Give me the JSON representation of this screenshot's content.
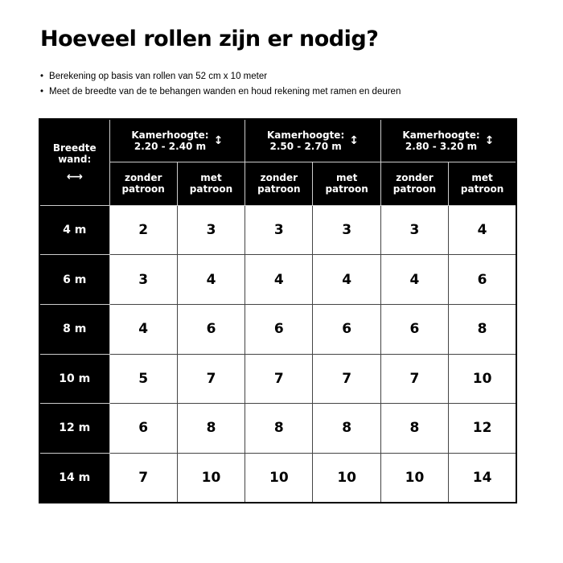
{
  "title": "Hoeveel rollen zijn er nodig?",
  "bullets": [
    "Berekening op basis van rollen van 52 cm x 10 meter",
    "Meet de breedte van de te behangen wanden en houd rekening met ramen en deuren"
  ],
  "table": {
    "corner_label": "Breedte wand:",
    "height_label": "Kamerhoogte:",
    "ranges": [
      "2.20 - 2.40 m",
      "2.50 - 2.70 m",
      "2.80 - 3.20 m"
    ],
    "sub": [
      "zonder patroon",
      "met patroon"
    ],
    "rows": [
      {
        "width": "4 m",
        "values": [
          "2",
          "3",
          "3",
          "3",
          "3",
          "4"
        ]
      },
      {
        "width": "6 m",
        "values": [
          "3",
          "4",
          "4",
          "4",
          "4",
          "6"
        ]
      },
      {
        "width": "8 m",
        "values": [
          "4",
          "6",
          "6",
          "6",
          "6",
          "8"
        ]
      },
      {
        "width": "10 m",
        "values": [
          "5",
          "7",
          "7",
          "7",
          "7",
          "10"
        ]
      },
      {
        "width": "12 m",
        "values": [
          "6",
          "8",
          "8",
          "8",
          "8",
          "12"
        ]
      },
      {
        "width": "14 m",
        "values": [
          "7",
          "10",
          "10",
          "10",
          "10",
          "14"
        ]
      }
    ]
  }
}
